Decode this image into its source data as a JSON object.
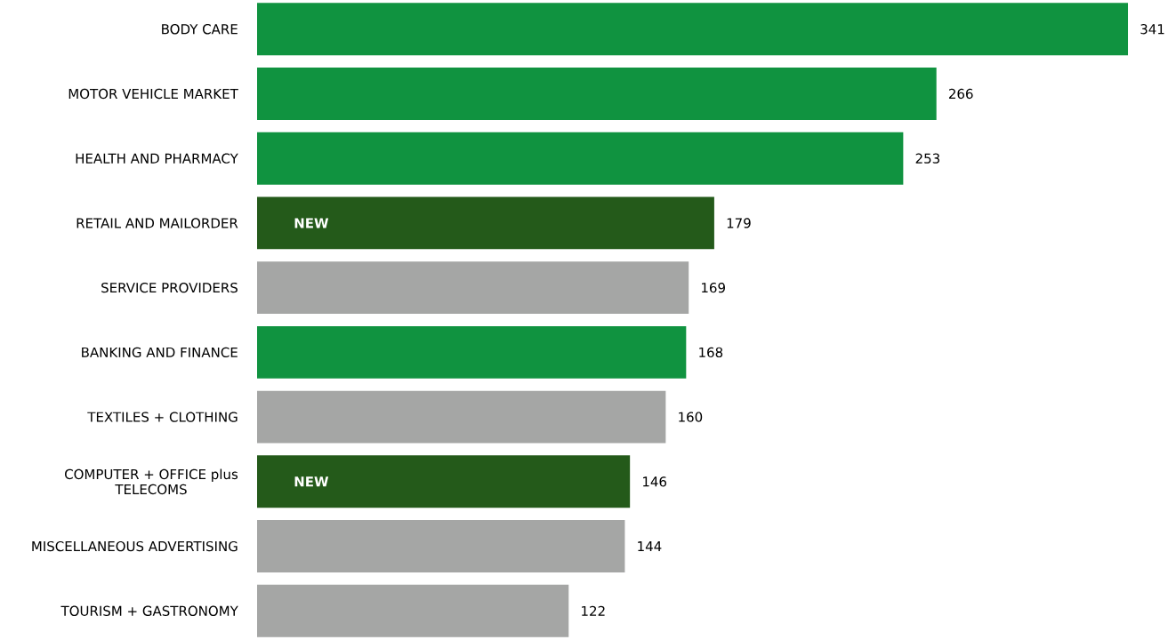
{
  "chart_data": {
    "type": "bar",
    "orientation": "horizontal",
    "data_labels": true,
    "categories": [
      "BODY CARE",
      "MOTOR VEHICLE MARKET",
      "HEALTH AND PHARMACY",
      "RETAIL AND MAILORDER",
      "SERVICE PROVIDERS",
      "BANKING AND FINANCE",
      "TEXTILES + CLOTHING",
      "COMPUTER + OFFICE plus TELECOMS",
      "MISCELLANEOUS ADVERTISING",
      "TOURISM + GASTRONOMY"
    ],
    "values": [
      341,
      266,
      253,
      179,
      169,
      168,
      160,
      146,
      144,
      122
    ],
    "colors": [
      "#109340",
      "#109340",
      "#109340",
      "#245a1a",
      "#a5a6a5",
      "#109340",
      "#a5a6a5",
      "#245a1a",
      "#a5a6a5",
      "#a5a6a5"
    ],
    "annotations": [
      {
        "text": "NEW",
        "y": "RETAIL AND MAILORDER"
      },
      {
        "text": "NEW",
        "y": "COMPUTER + OFFICE plus TELECOMS"
      }
    ]
  }
}
